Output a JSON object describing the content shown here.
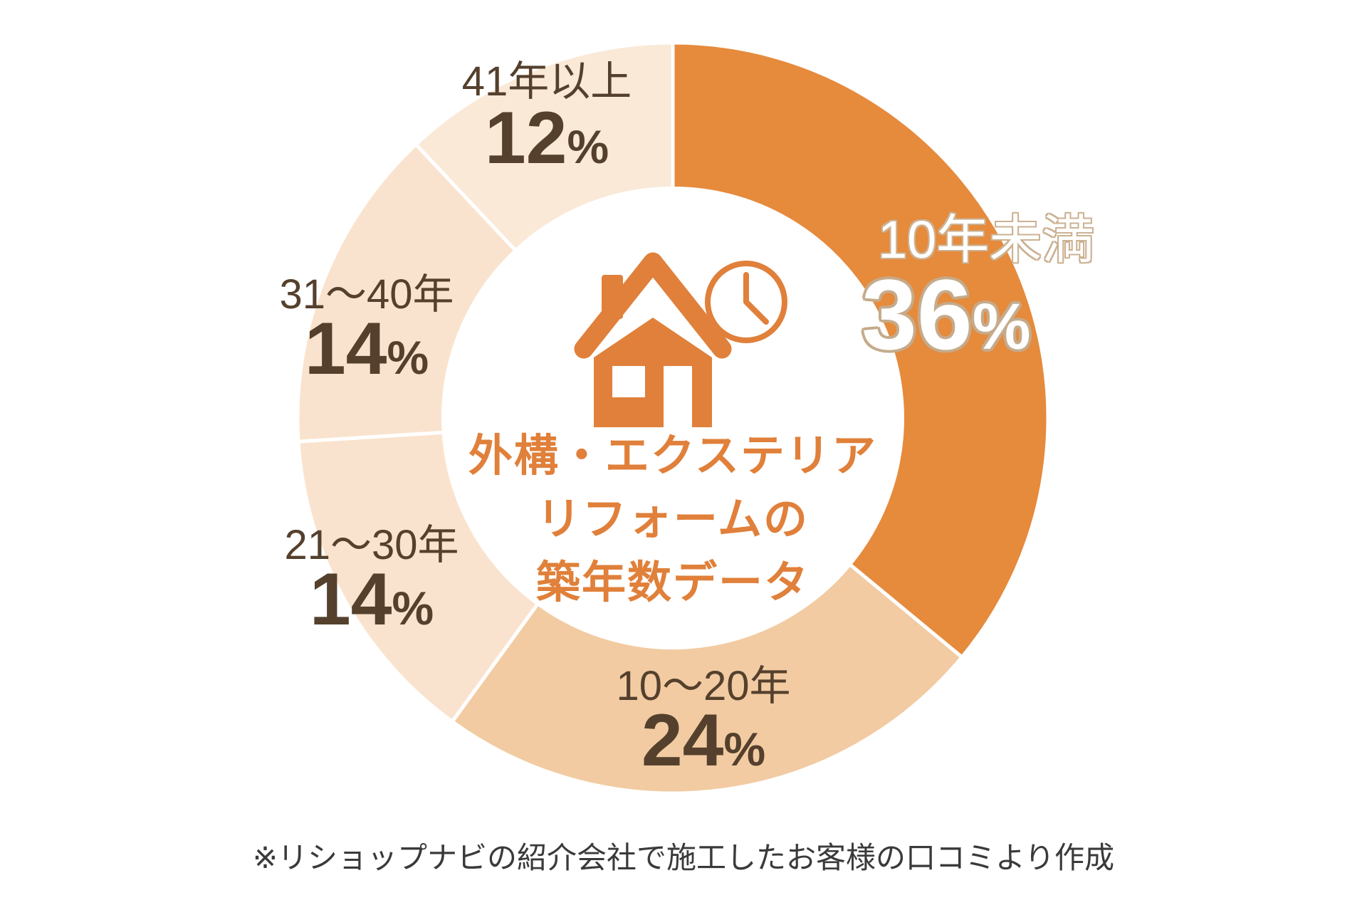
{
  "chart_data": {
    "type": "donut",
    "title": "外構・エクステリアリフォームの築年数データ",
    "title_lines": [
      "外構・エクステリア",
      "リフォームの",
      "築年数データ"
    ],
    "unit": "%",
    "segments": [
      {
        "label": "10年未満",
        "value": 36,
        "value_str": "36",
        "color": "#E68A3C",
        "highlighted": true
      },
      {
        "label": "10〜20年",
        "value": 24,
        "value_str": "24",
        "color": "#F2CBA2",
        "highlighted": false
      },
      {
        "label": "21〜30年",
        "value": 14,
        "value_str": "14",
        "color": "#FAE3CE",
        "highlighted": false
      },
      {
        "label": "31〜40年",
        "value": 14,
        "value_str": "14",
        "color": "#FAE3CE",
        "highlighted": false
      },
      {
        "label": "41年以上",
        "value": 12,
        "value_str": "12",
        "color": "#FAE9D7",
        "highlighted": false
      }
    ],
    "start_angle_deg": 0,
    "direction": "clockwise",
    "inner_radius_ratio": 0.612,
    "gap_color": "#FFFFFF",
    "footnote": "※リショップナビの紹介会社で施工したお客様の口コミより作成"
  },
  "colors": {
    "label_text": "#54402D",
    "center_text": "#E0803A",
    "icon_orange": "#E0803A",
    "highlight_text": "#FFFFFF",
    "highlight_outline": "#C5AB8B",
    "footnote_text": "#3A3A3A",
    "background": "#FFFFFF"
  }
}
